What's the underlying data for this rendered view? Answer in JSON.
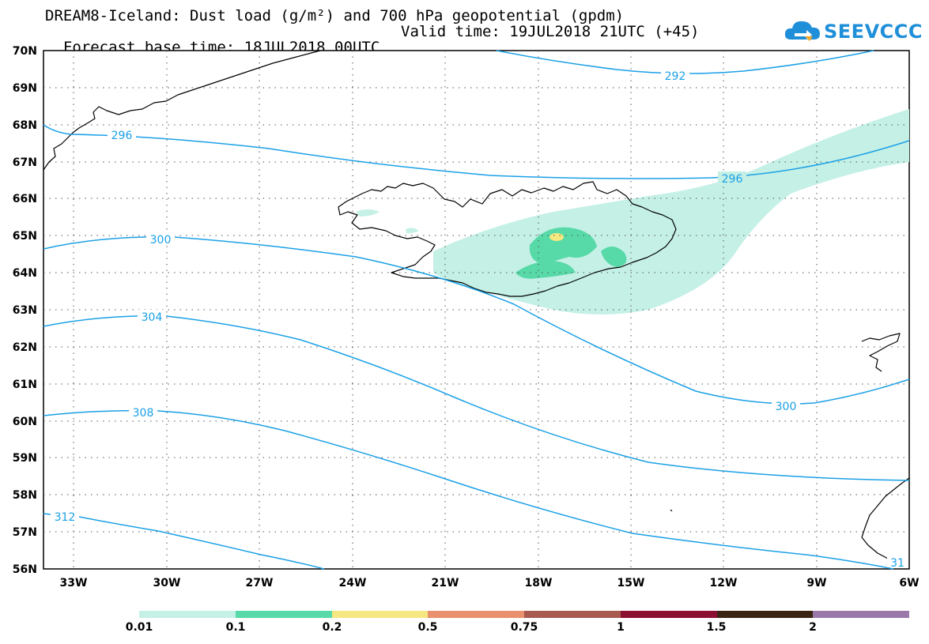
{
  "header": {
    "title_line1": "DREAM8-Iceland: Dust load (g/m²) and 700 hPa geopotential (gpdm)",
    "forecast_base": "Forecast base time: 18JUL2018 00UTC",
    "valid_time": "Valid time: 19JUL2018 21UTC (+45)"
  },
  "logo": {
    "text": "SEEVCCC",
    "icon": "cloud-arrow-icon",
    "color": "#1f8fd9"
  },
  "map": {
    "lat_labels": [
      "70N",
      "69N",
      "68N",
      "67N",
      "66N",
      "65N",
      "64N",
      "63N",
      "62N",
      "61N",
      "60N",
      "59N",
      "58N",
      "57N",
      "56N"
    ],
    "lon_labels": [
      "33W",
      "30W",
      "27W",
      "24W",
      "21W",
      "18W",
      "15W",
      "12W",
      "9W",
      "6W"
    ],
    "contour_color": "#1aa0e6",
    "contour_labels": [
      "292",
      "296",
      "296",
      "300",
      "300",
      "304",
      "308",
      "312",
      "31"
    ]
  },
  "legend": {
    "colors": [
      "#c4f0e6",
      "#57d9a8",
      "#f5e880",
      "#e9906e",
      "#a85a50",
      "#8a0f30",
      "#3a2414",
      "#9a78aa"
    ],
    "labels": [
      "0.01",
      "0.1",
      "0.2",
      "0.5",
      "0.75",
      "1",
      "1.5",
      "2"
    ]
  }
}
